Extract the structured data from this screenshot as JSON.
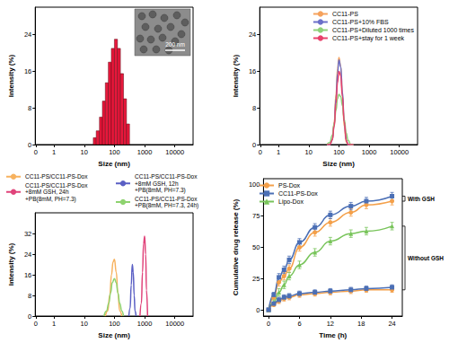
{
  "chart_data": [
    {
      "type": "histogram",
      "xlabel": "Size (nm)",
      "ylabel": "Intensity (%)",
      "bins": [
        20,
        25,
        32,
        40,
        50,
        63,
        79,
        100,
        126,
        158,
        200,
        251,
        316
      ],
      "counts": [
        1.5,
        3,
        6,
        9.5,
        13.5,
        18,
        21,
        23,
        21,
        15.5,
        10,
        4.5
      ],
      "color": "#e8173b",
      "log": "x",
      "xlim": [
        0.24,
        40000
      ],
      "xticks": [
        {
          "value": 0.25,
          "label": "0"
        },
        1,
        10,
        100,
        1000,
        10000
      ],
      "ylim": [
        0,
        30
      ],
      "yticks": [
        0,
        8,
        16,
        24
      ],
      "annotations": [
        "200 nm"
      ]
    },
    {
      "type": "line",
      "xlabel": "Size (nm)",
      "ylabel": "Intensity (%)",
      "x": [
        40,
        50,
        60,
        70,
        80,
        90,
        100,
        115,
        130,
        150,
        175,
        200,
        250,
        300
      ],
      "series": [
        {
          "name": "CC11-PS",
          "color": "#f5a25d",
          "values": [
            0,
            0,
            1,
            5,
            11,
            16.5,
            19,
            17,
            11,
            4,
            0.5,
            0,
            0,
            0
          ]
        },
        {
          "name": "CC11-PS+10% FBS",
          "color": "#6b70c9",
          "values": [
            0,
            0,
            1,
            4.5,
            10,
            15.5,
            18.5,
            17,
            11.5,
            5,
            1,
            0,
            0,
            0
          ]
        },
        {
          "name": "CC11-PS+Diluted 1000 times",
          "color": "#8fd17a",
          "values": [
            0,
            0.5,
            2,
            4.5,
            7.5,
            10,
            11,
            10.5,
            8.5,
            5.5,
            2.5,
            1,
            0,
            0
          ]
        },
        {
          "name": "CC11-PS+stay for 1 week",
          "color": "#e8416b",
          "values": [
            0,
            0,
            1,
            4,
            9,
            13.5,
            16,
            15,
            10.5,
            5,
            1,
            0,
            0,
            0
          ]
        }
      ],
      "log": "x",
      "legend": "upper right",
      "xlim": [
        0.24,
        40000
      ],
      "xticks": [
        {
          "value": 0.25,
          "label": "0"
        },
        1,
        10,
        100,
        1000,
        10000
      ],
      "ylim": [
        0,
        30
      ],
      "yticks": [
        0,
        8,
        16,
        24
      ]
    },
    {
      "type": "line",
      "xlabel": "Size (nm)",
      "ylabel": "Intensity (%)",
      "series": [
        {
          "name": "CC11-PS/CC11-PS-Dox",
          "color": "#f7b25f",
          "x": [
            50,
            60,
            70,
            80,
            90,
            100,
            115,
            130,
            150,
            175
          ],
          "values": [
            0,
            2,
            8,
            16,
            21,
            22,
            17,
            9,
            2,
            0
          ]
        },
        {
          "name": "CC11-PS/CC11-PS-Dox\n+8mM GSH, 24h\n+PB(8mM, PH=7.3)",
          "color": "#e0437a",
          "x": [
            700,
            780,
            850,
            920,
            1000,
            1080,
            1150,
            1250
          ],
          "values": [
            0,
            5,
            17,
            28,
            31,
            24,
            10,
            0
          ]
        },
        {
          "name": "CC11-PS/CC11-PS-Dox\n+8mM GSH, 12h\n+PB(8mM, PH=7.3)",
          "color": "#5a5fc4",
          "x": [
            300,
            330,
            360,
            390,
            420,
            450,
            480,
            520
          ],
          "values": [
            0,
            3,
            12,
            20,
            17,
            8,
            2,
            0
          ]
        },
        {
          "name": "CC11-PS/CC11-PS-Dox\n+PB(8mM, PH=7.3, 24h)",
          "color": "#8ed36f",
          "x": [
            45,
            55,
            65,
            75,
            85,
            100,
            115,
            130,
            150,
            175,
            200
          ],
          "values": [
            0,
            2,
            5,
            9,
            13,
            14.5,
            13,
            9,
            5,
            2,
            0
          ]
        }
      ],
      "log": "x",
      "legend": "top",
      "xlim": [
        0.24,
        40000
      ],
      "xticks": [
        {
          "value": 0.25,
          "label": "0"
        },
        1,
        10,
        100,
        1000,
        10000
      ],
      "ylim": [
        0,
        40
      ],
      "yticks": [
        0,
        8,
        16,
        24,
        32
      ]
    },
    {
      "type": "line",
      "xlabel": "Time (h)",
      "ylabel": "Cumulative drug release (%)",
      "x": [
        0,
        1,
        2,
        3,
        4,
        6,
        9,
        12,
        16,
        19,
        24
      ],
      "series": [
        {
          "name": "PS-Dox",
          "color": "#f4a04a",
          "marker": "circle",
          "condition": "With GSH",
          "values": [
            0,
            10,
            22,
            27,
            33,
            50,
            62,
            70,
            78,
            84,
            87
          ],
          "errors": [
            0,
            2,
            3,
            3,
            3,
            3,
            3,
            3,
            3,
            3,
            3
          ]
        },
        {
          "name": "CC11-PS-Dox",
          "color": "#4b6fb5",
          "marker": "square",
          "condition": "With GSH",
          "values": [
            0,
            12,
            26,
            32,
            40,
            54,
            66,
            76,
            83,
            87,
            91
          ],
          "errors": [
            0,
            2,
            3,
            3,
            3,
            3,
            3,
            3,
            3,
            3,
            3
          ]
        },
        {
          "name": "Lipo-Dox",
          "color": "#78c45a",
          "marker": "triangle",
          "condition": "Without GSH",
          "values": [
            0,
            6,
            14,
            20,
            27,
            36,
            46,
            55,
            61,
            63,
            67
          ],
          "errors": [
            0,
            2,
            3,
            3,
            3,
            3,
            3,
            3,
            3,
            3,
            3
          ]
        },
        {
          "name": "PS-Dox",
          "color": "#f4a04a",
          "marker": "circle",
          "condition": "Without GSH",
          "values": [
            0,
            4,
            7,
            9,
            10,
            12,
            13,
            14,
            15,
            16,
            16
          ],
          "errors": [
            0,
            1,
            2,
            2,
            2,
            2,
            2,
            2,
            2,
            2,
            2
          ]
        },
        {
          "name": "CC11-PS-Dox",
          "color": "#4b6fb5",
          "marker": "square",
          "condition": "Without GSH",
          "values": [
            0,
            5,
            8,
            10,
            11,
            13,
            14,
            15,
            16,
            17,
            18
          ],
          "errors": [
            0,
            1,
            2,
            2,
            2,
            2,
            2,
            2,
            2,
            2,
            2
          ]
        }
      ],
      "legend": "upper left",
      "xlim": [
        -1,
        26
      ],
      "xticks": [
        0,
        6,
        12,
        18,
        24
      ],
      "ylim": [
        -5,
        105
      ],
      "yticks": [
        0,
        25,
        50,
        75,
        100
      ]
    }
  ]
}
